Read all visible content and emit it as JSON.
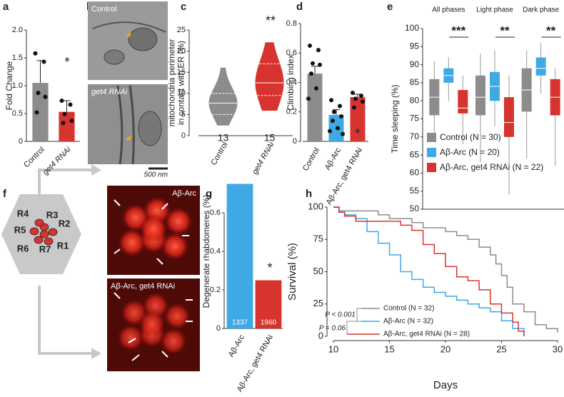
{
  "chart_data": [
    {
      "type": "bar",
      "panel_label": "a",
      "y_label": [
        "Fold Change"
      ],
      "categories": [
        "Control",
        "get4 RNAi"
      ],
      "colors": [
        "#8c8c8c",
        "#d7342f"
      ],
      "values": [
        1.05,
        0.53
      ],
      "errors": [
        0.4,
        0.2
      ],
      "points": [
        [
          1.58,
          1.43,
          0.87,
          0.8,
          0.52
        ],
        [
          0.73,
          0.66,
          0.49,
          0.37,
          0.33
        ]
      ],
      "annotation": "*",
      "ylim": [
        0,
        2
      ],
      "yticks": [
        0,
        0.5,
        {
          "value": 1,
          "label": "1.0"
        },
        1.5,
        {
          "value": 2,
          "label": "2.0"
        }
      ]
    },
    {
      "type": "violin",
      "panel_label": "c",
      "y_label": [
        "mitochondria perimeter",
        "in contact with ER (%)"
      ],
      "categories": [
        "Control",
        "get4 RNAi"
      ],
      "colors": [
        "#8c8c8c",
        "#d7342f"
      ],
      "min": [
        2.5,
        6
      ],
      "q1": [
        5,
        9.5
      ],
      "median": [
        7.7,
        12.5
      ],
      "q3": [
        10,
        17
      ],
      "max": [
        16,
        22
      ],
      "n_labels": [
        13,
        15
      ],
      "annotation": "**",
      "ylim": [
        0,
        25
      ],
      "yticks": [
        0,
        5,
        10,
        15,
        20,
        25
      ]
    },
    {
      "type": "bar",
      "panel_label": "d",
      "y_label": [
        "Climbing index"
      ],
      "categories": [
        "Control",
        "Aβ-Arc",
        "Aβ-Arc, get4 RNAi"
      ],
      "colors": [
        "#8c8c8c",
        "#3fa9e6",
        "#d7342f"
      ],
      "values": [
        0.46,
        0.18,
        0.3
      ],
      "errors": [
        0.05,
        0.035,
        0.02
      ],
      "points": [
        [
          0.65,
          0.62,
          0.53,
          0.52,
          0.46,
          0.36,
          0.29
        ],
        [
          0.28,
          0.24,
          0.2,
          0.17,
          0.14,
          0.09,
          0.07,
          0.05
        ],
        [
          0.33,
          0.31,
          0.29,
          0.27,
          0.23
        ]
      ],
      "annotation": "*",
      "ylim": [
        0,
        0.8
      ],
      "yticks": [
        0,
        0.2,
        0.4,
        0.6,
        0.8
      ]
    },
    {
      "type": "box",
      "panel_label": "e",
      "y_label": [
        "Time sleeping (%)"
      ],
      "groups": [
        "All phases",
        "Light phase",
        "Dark phase"
      ],
      "annotations": [
        "***",
        "**",
        "**"
      ],
      "series": [
        {
          "name": "Control (N = 30)",
          "color": "#8c8c8c",
          "min": [
            70,
            63,
            64
          ],
          "q1": [
            76,
            76,
            77
          ],
          "median": [
            81,
            81,
            83
          ],
          "q3": [
            86,
            87,
            89
          ],
          "max": [
            91,
            93,
            94
          ]
        },
        {
          "name": "Aβ-Arc (N = 20)",
          "color": "#3fa9e6",
          "min": [
            80,
            73,
            82
          ],
          "q1": [
            85,
            80,
            87
          ],
          "median": [
            87,
            84,
            89
          ],
          "q3": [
            89,
            88,
            92
          ],
          "max": [
            92,
            94,
            96
          ]
        },
        {
          "name": "Aβ-Arc, get4 RNAi (N = 22)",
          "color": "#d7342f",
          "min": [
            68,
            54,
            62
          ],
          "q1": [
            76.5,
            70,
            76
          ],
          "median": [
            78,
            74,
            81
          ],
          "q3": [
            83,
            81,
            86
          ],
          "max": [
            87,
            87,
            89
          ]
        }
      ],
      "ylim": [
        50,
        100
      ],
      "yticks": [
        50,
        55,
        60,
        65,
        70,
        75,
        80,
        85,
        90,
        95,
        100
      ]
    },
    {
      "type": "bar",
      "panel_label": "g",
      "y_label": [
        "Degenerate rhabdomeres (%)"
      ],
      "categories": [
        "Aβ-Arc",
        "Aβ-Arc, get4 RNAi"
      ],
      "colors": [
        "#3fa9e6",
        "#d7342f"
      ],
      "values": [
        0.75,
        0.25
      ],
      "n_labels": [
        1337,
        1960
      ],
      "annotation": "*",
      "ylim": [
        0,
        0.8
      ],
      "yticks": [
        0,
        0.2,
        0.4,
        0.6
      ]
    },
    {
      "type": "step",
      "panel_label": "h",
      "x_label": "Days",
      "y_label": [
        "Survival (%)"
      ],
      "annotations": [
        "P < 0.001",
        "P = 0.06"
      ],
      "series": [
        {
          "name": "Control (N = 32)",
          "color": "#8c8c8c",
          "x": [
            10,
            10.5,
            11,
            12,
            14,
            15,
            16,
            17,
            18,
            19,
            20,
            21,
            22,
            23,
            24,
            24.5,
            25,
            25.5,
            26,
            27,
            28,
            29,
            30
          ],
          "values": [
            100,
            97,
            97,
            97,
            94,
            91,
            91,
            88,
            84,
            84,
            81,
            78,
            75,
            69,
            63,
            56,
            47,
            38,
            25,
            19,
            9,
            6,
            3
          ]
        },
        {
          "name": "Aβ-Arc (N = 32)",
          "color": "#3fa9e6",
          "x": [
            10,
            10.5,
            11,
            12,
            13,
            14,
            15,
            16,
            17,
            18,
            19,
            20,
            21,
            22,
            23,
            24,
            25,
            26,
            27
          ],
          "values": [
            100,
            97,
            94,
            91,
            81,
            72,
            63,
            50,
            44,
            38,
            34,
            31,
            28,
            25,
            22,
            19,
            12,
            6,
            0
          ]
        },
        {
          "name": "Aβ-Arc, get4 RNAi (N = 28)",
          "color": "#d7342f",
          "x": [
            10,
            10.5,
            11,
            12,
            15,
            16,
            17,
            18,
            19,
            20,
            21,
            22,
            23,
            24,
            25,
            26,
            26.5,
            27
          ],
          "values": [
            100,
            96,
            93,
            89,
            89,
            86,
            82,
            71,
            64,
            54,
            46,
            43,
            36,
            25,
            18,
            11,
            4,
            0
          ]
        }
      ],
      "xlim": [
        10,
        30
      ],
      "xticks": [
        10,
        15,
        20,
        25,
        30
      ],
      "ylim": [
        0,
        100
      ],
      "yticks": [
        0,
        25,
        50,
        75,
        100
      ]
    }
  ],
  "panel_b": {
    "panel_label": "b",
    "top_label": "Control",
    "bottom_label": "get4 RNAi",
    "scale_bar": "500 nm"
  },
  "panel_f": {
    "panel_label": "f",
    "photoreceptors": [
      "R1",
      "R2",
      "R3",
      "R4",
      "R5",
      "R6",
      "R7"
    ],
    "top_label": "Aβ-Arc",
    "bottom_label": "Aβ-Arc, get4 RNAi"
  }
}
